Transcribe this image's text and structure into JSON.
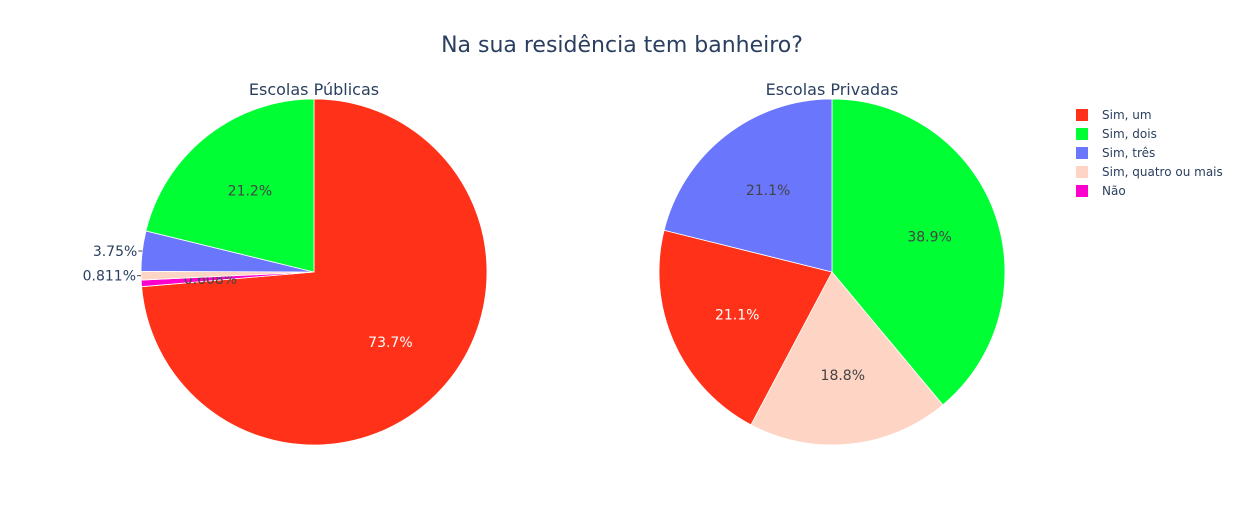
{
  "chart_data": {
    "type": "pie",
    "title": "Na sua residência tem banheiro?",
    "legend": {
      "position": "top-right",
      "entries": [
        {
          "label": "Sim, um",
          "color": "#FF3118"
        },
        {
          "label": "Sim, dois",
          "color": "#00FE35"
        },
        {
          "label": "Sim, três",
          "color": "#6A76FC"
        },
        {
          "label": "Sim, quatro ou mais",
          "color": "#FED4C4"
        },
        {
          "label": "Não",
          "color": "#FE00CE"
        }
      ]
    },
    "charts": [
      {
        "title": "Escolas Públicas",
        "slices": [
          {
            "label": "Sim, um",
            "value": 73.7,
            "text": "73.7%",
            "color": "#FF3118"
          },
          {
            "label": "Não",
            "value": 0.608,
            "text": "0.608%",
            "color": "#FE00CE"
          },
          {
            "label": "Sim, quatro ou mais",
            "value": 0.811,
            "text": "0.811%",
            "color": "#FED4C4"
          },
          {
            "label": "Sim, três",
            "value": 3.75,
            "text": "3.75%",
            "color": "#6A76FC"
          },
          {
            "label": "Sim, dois",
            "value": 21.2,
            "text": "21.2%",
            "color": "#00FE35"
          }
        ]
      },
      {
        "title": "Escolas Privadas",
        "slices": [
          {
            "label": "Sim, dois",
            "value": 38.9,
            "text": "38.9%",
            "color": "#00FE35"
          },
          {
            "label": "Sim, quatro ou mais",
            "value": 18.8,
            "text": "18.8%",
            "color": "#FED4C4"
          },
          {
            "label": "Sim, um",
            "value": 21.1,
            "text": "21.1%",
            "color": "#FF3118"
          },
          {
            "label": "Sim, três",
            "value": 21.1,
            "text": "21.1%",
            "color": "#6A76FC"
          }
        ]
      }
    ]
  }
}
